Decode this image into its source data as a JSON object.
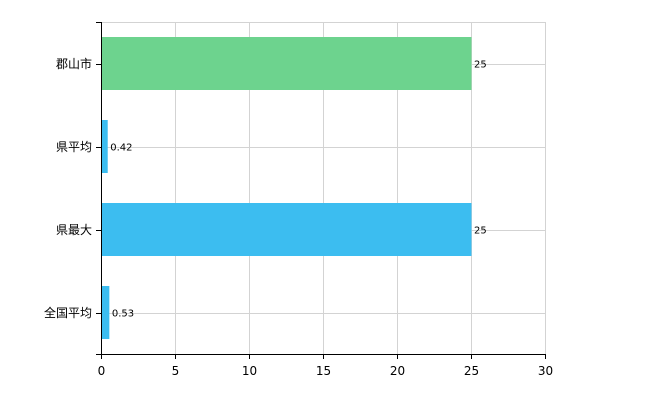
{
  "chart_data": {
    "type": "bar",
    "orientation": "horizontal",
    "categories": [
      "郡山市",
      "県平均",
      "県最大",
      "全国平均"
    ],
    "values": [
      25,
      0.42,
      25,
      0.53
    ],
    "value_labels": [
      "25",
      "0.42",
      "25",
      "0.53"
    ],
    "bar_colors": [
      "#6dd38e",
      "#3cbdf0",
      "#3cbdf0",
      "#3cbdf0"
    ],
    "xlim": [
      0,
      30
    ],
    "x_ticks": [
      0,
      5,
      10,
      15,
      20,
      25,
      30
    ],
    "x_tick_labels": [
      "0",
      "5",
      "10",
      "15",
      "20",
      "25",
      "30"
    ],
    "grid": true,
    "title": "",
    "xlabel": "",
    "ylabel": ""
  }
}
